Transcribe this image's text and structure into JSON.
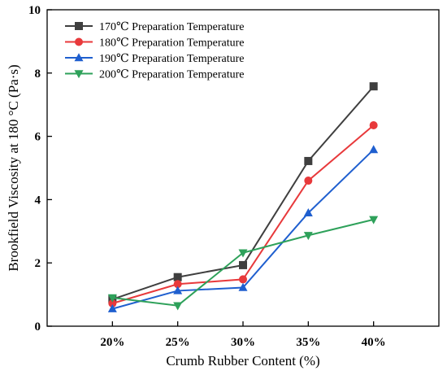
{
  "chart_data": {
    "type": "line",
    "title": "",
    "xlabel": "Crumb Rubber Content (%)",
    "ylabel": "Brookfield Viscosity at 180 °C (Pa·s)",
    "categories": [
      "20%",
      "25%",
      "30%",
      "35%",
      "40%"
    ],
    "ylim": [
      0,
      10
    ],
    "yticks": [
      0,
      2,
      4,
      6,
      8,
      10
    ],
    "grid": false,
    "legend_position": "top-left",
    "series": [
      {
        "name": "170℃ Preparation Temperature",
        "color": "#3f3f3f",
        "marker": "square",
        "values": [
          0.85,
          1.55,
          1.93,
          5.22,
          7.58
        ]
      },
      {
        "name": "180℃ Preparation Temperature",
        "color": "#e8393b",
        "marker": "circle",
        "values": [
          0.72,
          1.33,
          1.48,
          4.6,
          6.35
        ]
      },
      {
        "name": "190℃ Preparation Temperature",
        "color": "#1f5fcf",
        "marker": "triangle-up",
        "values": [
          0.55,
          1.12,
          1.22,
          3.58,
          5.58
        ]
      },
      {
        "name": "200℃ Preparation Temperature",
        "color": "#2ea15a",
        "marker": "triangle-down",
        "values": [
          0.9,
          0.65,
          2.32,
          2.87,
          3.37
        ]
      }
    ]
  }
}
